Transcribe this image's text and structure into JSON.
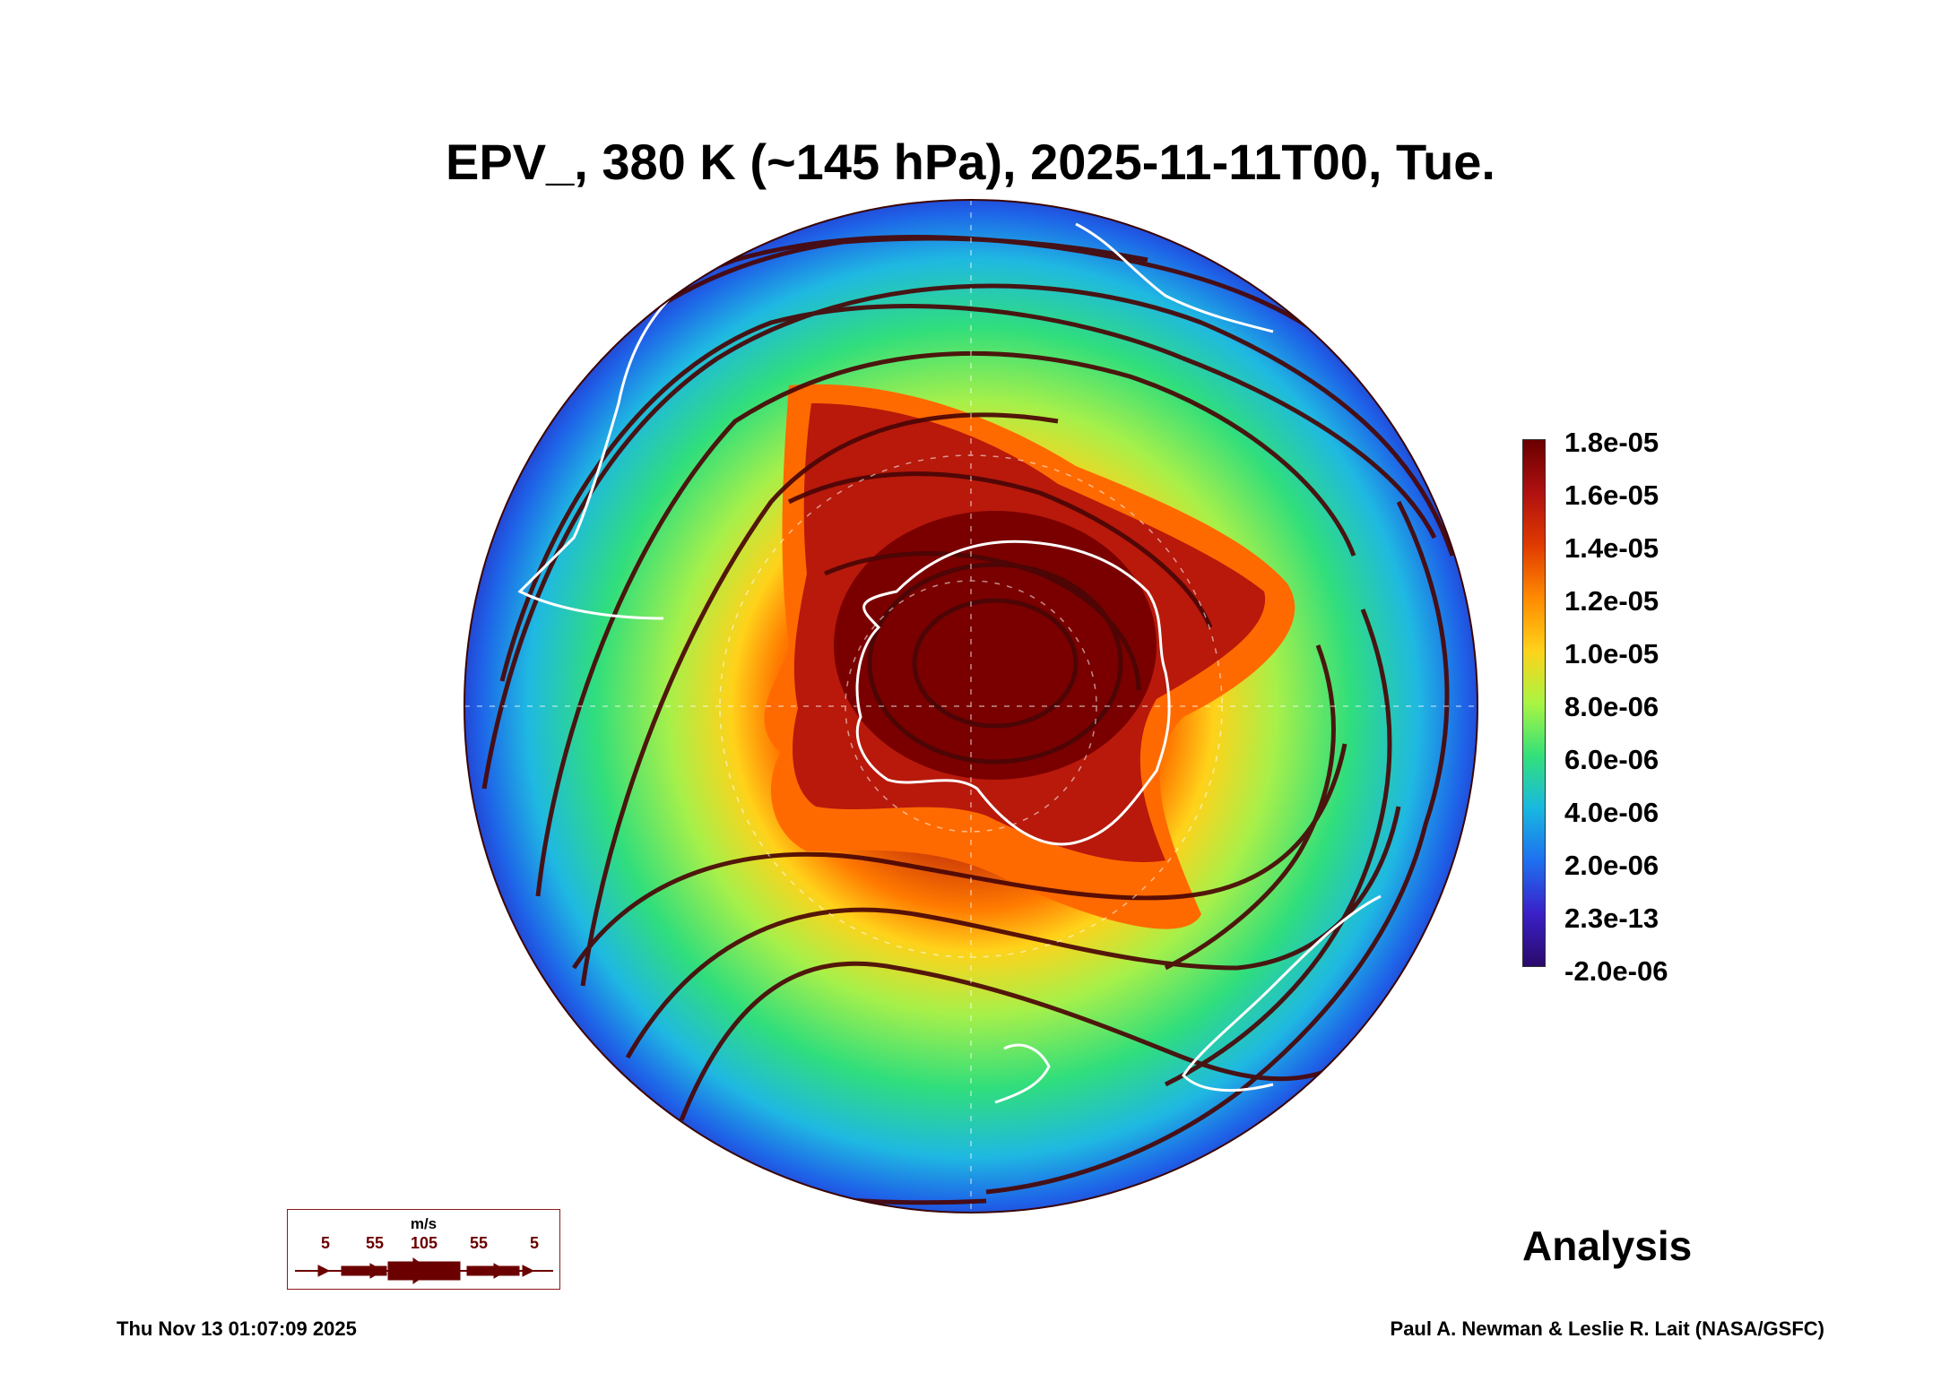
{
  "title": "EPV_, 380 K (~145 hPa), 2025-11-11T00, Tue.",
  "colorbar": {
    "labels": [
      "1.8e-05",
      "1.6e-05",
      "1.4e-05",
      "1.2e-05",
      "1.0e-05",
      "8.0e-06",
      "6.0e-06",
      "4.0e-06",
      "2.0e-06",
      "2.3e-13",
      "-2.0e-06"
    ],
    "colors": [
      "#6a0000",
      "#b01010",
      "#e03a00",
      "#ff8a00",
      "#ffd21a",
      "#a9f542",
      "#33e07a",
      "#18b8e0",
      "#1e70f0",
      "#3a20c8",
      "#2a0a6a"
    ]
  },
  "wind_legend": {
    "unit": "m/s",
    "speeds": [
      "5",
      "55",
      "105",
      "55",
      "5"
    ],
    "color": "#6b0000"
  },
  "analysis_label": "Analysis",
  "timestamp": "Thu Nov 13 01:07:09 2025",
  "credit": "Paul A. Newman & Leslie R. Lait (NASA/GSFC)",
  "colors": {
    "streamline": "#4a0606",
    "coastline": "#ffffff",
    "outside_band": "#1f3ad6"
  }
}
